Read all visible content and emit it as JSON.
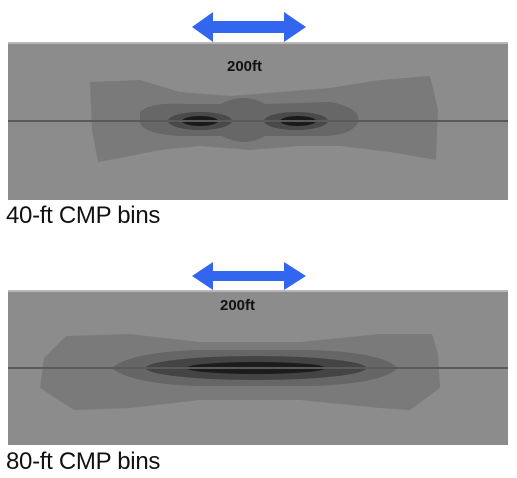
{
  "panels": [
    {
      "id": "panel-40ft",
      "scale_label": "200ft",
      "caption": "40-ft CMP bins",
      "colors": {
        "background": "#8c8c8c",
        "arrow": "#3366ee"
      }
    },
    {
      "id": "panel-80ft",
      "scale_label": "200ft",
      "caption": "80-ft CMP bins",
      "colors": {
        "background": "#8c8c8c",
        "arrow": "#3366ee"
      }
    }
  ]
}
